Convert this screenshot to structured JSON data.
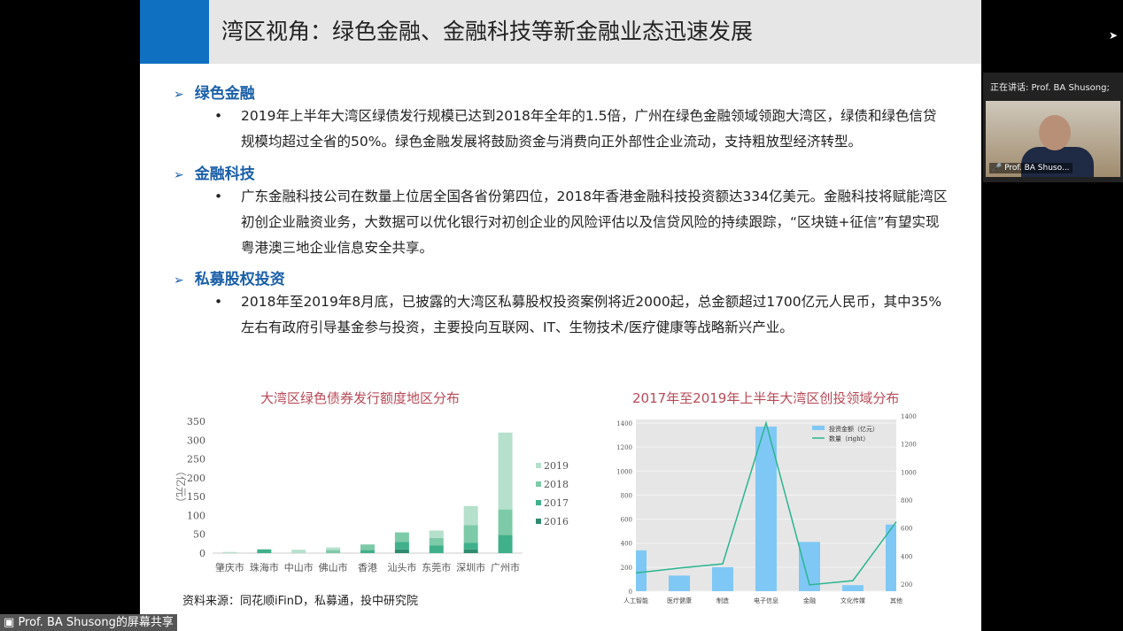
{
  "slide": {
    "title": "湾区视角：绿色金融、金融科技等新金融业态迅速发展",
    "sections": [
      {
        "heading": "绿色金融",
        "bullet": "2019年上半年大湾区绿债发行规模已达到2018年全年的1.5倍，广州在绿色金融领域领跑大湾区，绿债和绿色信贷规模均超过全省的50%。绿色金融发展将鼓励资金与消费向正外部性企业流动，支持粗放型经济转型。"
      },
      {
        "heading": "金融科技",
        "bullet": "广东金融科技公司在数量上位居全国各省份第四位，2018年香港金融科技投资额达334亿美元。金融科技将赋能湾区初创企业融资业务，大数据可以优化银行对初创企业的风险评估以及信贷风险的持续跟踪，“区块链+征信”有望实现粤港澳三地企业信息安全共享。"
      },
      {
        "heading": "私募股权投资",
        "bullet": "2018年至2019年8月底，已披露的大湾区私募股权投资案例将近2000起，总金额超过1700亿元人民币，其中35%左右有政府引导基金参与投资，主要投向互联网、IT、生物技术/医疗健康等战略新兴产业。"
      }
    ],
    "source": "资料来源：同花顺iFinD，私募通，投中研究院"
  },
  "chart_data": [
    {
      "type": "bar",
      "stacked": true,
      "title": "大湾区绿色债券发行额度地区分布",
      "ylabel": "（亿元）",
      "ylim": [
        0,
        350
      ],
      "yticks": [
        0,
        50,
        100,
        150,
        200,
        250,
        300,
        350
      ],
      "categories": [
        "肇庆市",
        "珠海市",
        "中山市",
        "佛山市",
        "香港",
        "汕头市",
        "东莞市",
        "深圳市",
        "广州市"
      ],
      "legend_position": "right",
      "series": [
        {
          "name": "2016",
          "color": "#2e8b6e",
          "values": [
            0,
            0,
            0,
            0,
            0,
            10,
            0,
            10,
            0
          ]
        },
        {
          "name": "2017",
          "color": "#3fb08a",
          "values": [
            0,
            10,
            0,
            0,
            8,
            20,
            20,
            17,
            48
          ]
        },
        {
          "name": "2018",
          "color": "#7dcaa8",
          "values": [
            0,
            0,
            0,
            8,
            15,
            25,
            20,
            47,
            68
          ]
        },
        {
          "name": "2019",
          "color": "#b5e0cc",
          "values": [
            3,
            0,
            9,
            7,
            0,
            0,
            20,
            51,
            204
          ]
        }
      ]
    },
    {
      "type": "bar+line",
      "title": "2017年至2019年上半年大湾区创投领域分布",
      "categories": [
        "人工智能",
        "医疗健康",
        "制造",
        "电子信息",
        "金融",
        "文化传媒",
        "其他"
      ],
      "ylim": [
        0,
        1400
      ],
      "yticks": [
        0,
        200,
        400,
        600,
        800,
        1000,
        1200,
        1400
      ],
      "y2lim": [
        150,
        1375
      ],
      "y2ticks": [
        200,
        400,
        600,
        800,
        1000,
        1200,
        1400
      ],
      "legend_position": "top-right",
      "grid": true,
      "series": [
        {
          "name": "投资金额（亿元）",
          "kind": "bar",
          "color": "#7fc8f5",
          "values": [
            340,
            130,
            200,
            1370,
            410,
            50,
            555
          ]
        },
        {
          "name": "数量（right）",
          "kind": "line",
          "axis": "right",
          "color": "#2bb58f",
          "values": [
            280,
            315,
            345,
            1350,
            195,
            225,
            645
          ]
        }
      ]
    }
  ],
  "speaker": {
    "label": "正在讲话: Prof. BA Shusong;",
    "name": "Prof. BA Shuso..."
  },
  "share_label": "Prof. BA Shusong的屏幕共享"
}
